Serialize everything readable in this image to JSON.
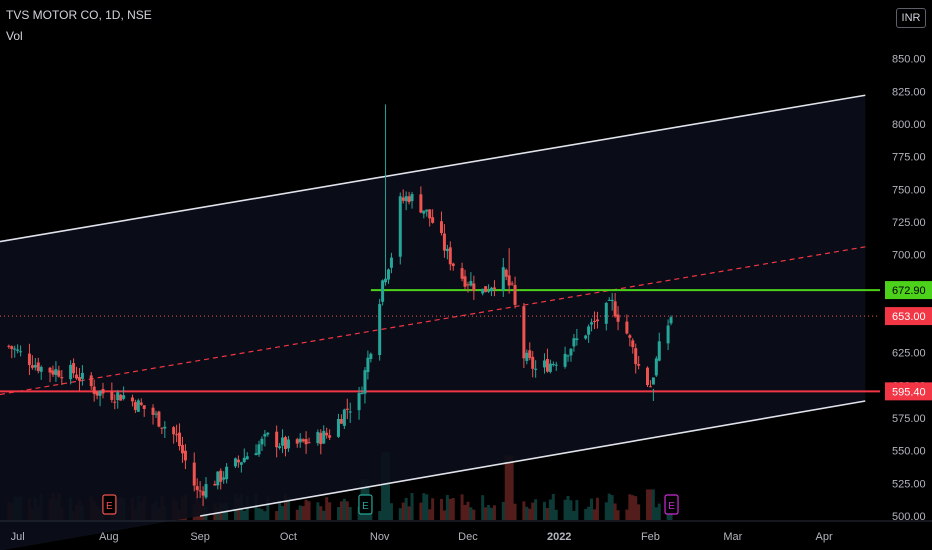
{
  "header": {
    "symbol_line": "TVS MOTOR CO, 1D, NSE",
    "indicator": "Vol",
    "currency": "INR"
  },
  "colors": {
    "background": "#000000",
    "up": "#26a69a",
    "down": "#ef5350",
    "channel": "#e0e3eb",
    "support": "#f23645",
    "resistance": "#4cd21b",
    "midline": "#f23645",
    "price_dotted": "#ef5350",
    "axis_text": "#b2b5be",
    "earnings_red": "#ef5350",
    "earnings_green": "#26a69a",
    "earnings_purple": "#cc2bd6"
  },
  "chart_data": {
    "type": "candlestick",
    "title": "TVS MOTOR CO, 1D, NSE",
    "xlabel": "",
    "ylabel": "",
    "ylim": [
      500,
      875
    ],
    "y_ticks": [
      "850.00",
      "825.00",
      "800.00",
      "775.00",
      "750.00",
      "725.00",
      "700.00",
      "675.00",
      "650.00",
      "625.00",
      "600.00",
      "575.00",
      "550.00",
      "525.00",
      "500.00"
    ],
    "x_ticks": [
      "Jul",
      "Aug",
      "Sep",
      "Oct",
      "Nov",
      "Dec",
      "2022",
      "Feb",
      "Mar",
      "Apr"
    ],
    "x_tick_dates": [
      "2021-07-01",
      "2021-08-01",
      "2021-09-01",
      "2021-10-01",
      "2021-11-01",
      "2021-12-01",
      "2022-01-01",
      "2022-02-01",
      "2022-03-01",
      "2022-04-01"
    ],
    "price_labels": [
      {
        "text": "672.90",
        "value": 672.9,
        "kind": "resistance"
      },
      {
        "text": "653.00",
        "value": 653.0,
        "kind": "last"
      },
      {
        "text": "595.40",
        "value": 595.4,
        "kind": "support"
      }
    ],
    "horizontal_levels": [
      {
        "value": 672.9,
        "start": "2021-10-29",
        "kind": "resistance"
      },
      {
        "value": 595.4,
        "start": "2021-06-25",
        "kind": "support"
      }
    ],
    "channel_upper": [
      {
        "date": "2021-06-25",
        "value": 710
      },
      {
        "date": "2022-04-15",
        "value": 822
      }
    ],
    "channel_lower": [
      {
        "date": "2021-09-01",
        "value": 500
      },
      {
        "date": "2022-04-15",
        "value": 588
      }
    ],
    "midline": [
      {
        "date": "2021-06-25",
        "value": 593
      },
      {
        "date": "2022-04-15",
        "value": 706
      }
    ],
    "earnings": [
      {
        "date": "2021-08-01",
        "label": "E",
        "color": "red"
      },
      {
        "date": "2021-10-27",
        "label": "E",
        "color": "green"
      },
      {
        "date": "2022-02-08",
        "label": "E",
        "color": "purple"
      }
    ],
    "anchors": [
      {
        "date": "2021-06-28",
        "value": 630
      },
      {
        "date": "2021-07-10",
        "value": 612
      },
      {
        "date": "2021-07-20",
        "value": 610
      },
      {
        "date": "2021-07-28",
        "value": 595
      },
      {
        "date": "2021-08-06",
        "value": 592
      },
      {
        "date": "2021-08-16",
        "value": 578
      },
      {
        "date": "2021-08-24",
        "value": 560
      },
      {
        "date": "2021-08-31",
        "value": 518
      },
      {
        "date": "2021-09-08",
        "value": 530
      },
      {
        "date": "2021-09-16",
        "value": 545
      },
      {
        "date": "2021-09-24",
        "value": 560
      },
      {
        "date": "2021-10-01",
        "value": 553
      },
      {
        "date": "2021-10-08",
        "value": 557
      },
      {
        "date": "2021-10-15",
        "value": 563
      },
      {
        "date": "2021-10-20",
        "value": 580
      },
      {
        "date": "2021-10-25",
        "value": 590
      },
      {
        "date": "2021-10-29",
        "value": 630
      },
      {
        "date": "2021-11-02",
        "value": 680
      },
      {
        "date": "2021-11-05",
        "value": 700
      },
      {
        "date": "2021-11-08",
        "value": 740
      },
      {
        "date": "2021-11-11",
        "value": 745
      },
      {
        "date": "2021-11-16",
        "value": 735
      },
      {
        "date": "2021-11-20",
        "value": 722
      },
      {
        "date": "2021-11-24",
        "value": 700
      },
      {
        "date": "2021-11-29",
        "value": 683
      },
      {
        "date": "2021-12-06",
        "value": 672
      },
      {
        "date": "2021-12-13",
        "value": 685
      },
      {
        "date": "2021-12-16",
        "value": 672
      },
      {
        "date": "2021-12-20",
        "value": 622
      },
      {
        "date": "2021-12-24",
        "value": 612
      },
      {
        "date": "2021-12-30",
        "value": 618
      },
      {
        "date": "2022-01-06",
        "value": 632
      },
      {
        "date": "2022-01-13",
        "value": 648
      },
      {
        "date": "2022-01-19",
        "value": 662
      },
      {
        "date": "2022-01-24",
        "value": 640
      },
      {
        "date": "2022-01-29",
        "value": 608
      },
      {
        "date": "2022-02-01",
        "value": 600
      },
      {
        "date": "2022-02-04",
        "value": 628
      },
      {
        "date": "2022-02-08",
        "value": 653
      }
    ],
    "volume": {
      "spikes": [
        {
          "date": "2021-11-03",
          "value": 2.0
        },
        {
          "date": "2021-12-15",
          "value": 1.9
        },
        {
          "date": "2021-10-27",
          "value": 1.2
        },
        {
          "date": "2022-02-01",
          "value": 0.9
        },
        {
          "date": "2022-02-08",
          "value": 0.7
        }
      ]
    }
  }
}
